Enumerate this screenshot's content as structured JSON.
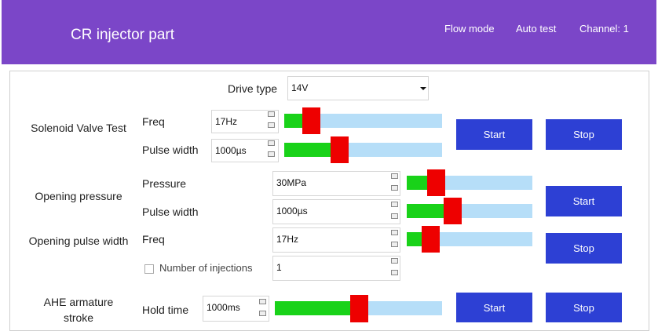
{
  "header": {
    "title": "CR injector part",
    "nav": [
      "Flow mode",
      "Auto test",
      "Channel: 1"
    ]
  },
  "drive_type": {
    "label": "Drive type",
    "value": "14V"
  },
  "sections": [
    {
      "title": "Solenoid Valve Test",
      "fields": [
        {
          "label": "Freq",
          "value": "17Hz"
        },
        {
          "label": "Pulse width",
          "value": "1000µs"
        }
      ],
      "buttons": [
        "Start",
        "Stop"
      ]
    },
    {
      "titles": [
        "Opening pressure",
        "Opening pulse width"
      ],
      "fields": [
        {
          "label": "Pressure",
          "value": "30MPa"
        },
        {
          "label": "Pulse width",
          "value": "1000µs"
        },
        {
          "label": "Freq",
          "value": "17Hz"
        },
        {
          "label": "Number of injections",
          "value": "1"
        }
      ],
      "buttons": [
        "Start",
        "Stop"
      ]
    },
    {
      "title": "AHE armature stroke",
      "fields": [
        {
          "label": "Hold time",
          "value": "1000ms"
        }
      ],
      "buttons": [
        "Start",
        "Stop"
      ]
    }
  ]
}
